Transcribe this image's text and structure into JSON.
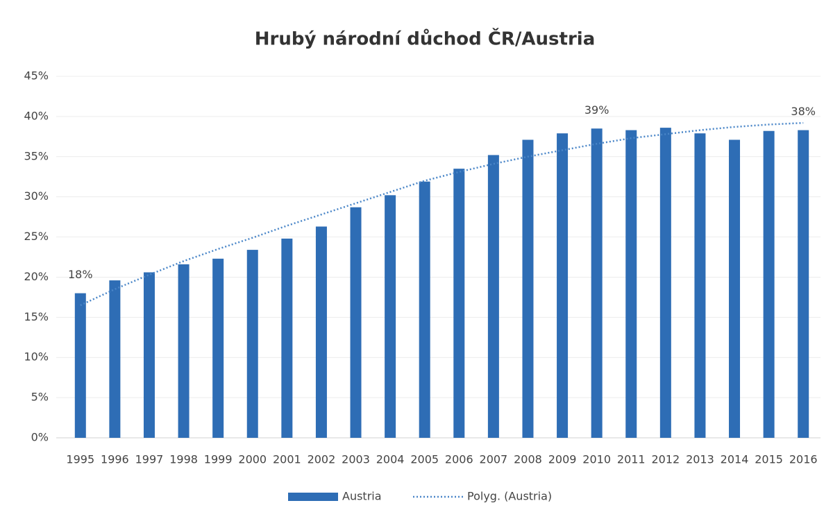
{
  "chart_data": {
    "type": "bar",
    "title": "Hrubý národní důchod ČR/Austria",
    "categories": [
      "1995",
      "1996",
      "1997",
      "1998",
      "1999",
      "2000",
      "2001",
      "2002",
      "2003",
      "2004",
      "2005",
      "2006",
      "2007",
      "2008",
      "2009",
      "2010",
      "2011",
      "2012",
      "2013",
      "2014",
      "2015",
      "2016"
    ],
    "series": [
      {
        "name": "Austria",
        "type": "bar",
        "color": "#2e6db5",
        "values": [
          18,
          19.6,
          20.6,
          21.6,
          22.3,
          23.4,
          24.8,
          26.3,
          28.7,
          30.2,
          31.9,
          33.5,
          35.2,
          37.1,
          37.9,
          38.5,
          38.3,
          38.6,
          37.9,
          37.1,
          38.2,
          38.3
        ],
        "value_labels": [
          "18%",
          null,
          null,
          null,
          null,
          null,
          null,
          null,
          null,
          null,
          null,
          null,
          null,
          null,
          null,
          "39%",
          null,
          null,
          null,
          null,
          null,
          "38%"
        ]
      },
      {
        "name": "Polyg. (Austria)",
        "type": "line",
        "style": "dotted",
        "color": "#4a86c8",
        "values": [
          16.5,
          18.5,
          20.3,
          22.0,
          23.5,
          24.9,
          26.4,
          27.8,
          29.2,
          30.6,
          32.0,
          33.1,
          34.1,
          35.0,
          35.8,
          36.6,
          37.3,
          37.8,
          38.3,
          38.7,
          39.0,
          39.2
        ]
      }
    ],
    "ylim": [
      0,
      45
    ],
    "yticks": [
      {
        "value": 0,
        "label": "0%"
      },
      {
        "value": 5,
        "label": "5%"
      },
      {
        "value": 10,
        "label": "10%"
      },
      {
        "value": 15,
        "label": "15%"
      },
      {
        "value": 20,
        "label": "20%"
      },
      {
        "value": 25,
        "label": "25%"
      },
      {
        "value": 30,
        "label": "30%"
      },
      {
        "value": 35,
        "label": "35%"
      },
      {
        "value": 40,
        "label": "40%"
      },
      {
        "value": 45,
        "label": "45%"
      }
    ],
    "grid": true,
    "legend": "bottom"
  }
}
